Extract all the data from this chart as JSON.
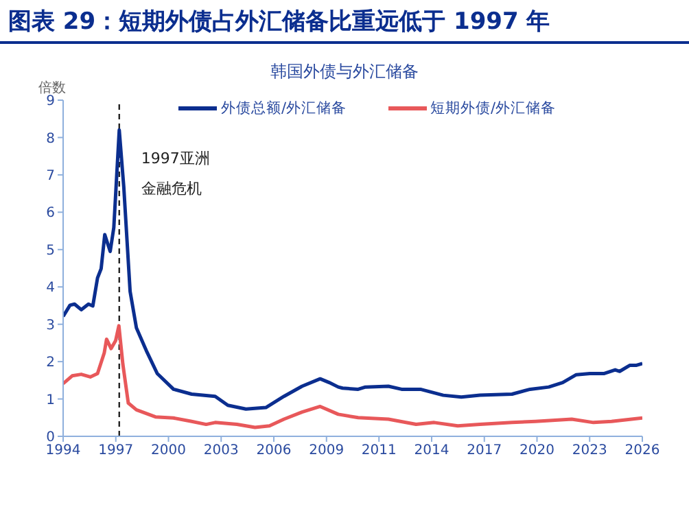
{
  "chart_data": {
    "type": "line",
    "title": "图表 29：短期外债占外汇储备比重远低于 1997 年",
    "subtitle": "韩国外债与外汇储备",
    "ylabel": "倍数",
    "series": [
      {
        "name": "外债总额/外汇储备",
        "color": "#0b2e8f",
        "x": [
          1994.0,
          1994.38,
          1994.63,
          1995.0,
          1995.4,
          1995.64,
          1995.9,
          1996.1,
          1996.3,
          1996.6,
          1996.8,
          1997.1,
          1997.35,
          1997.7,
          1998.05,
          1998.6,
          1999.2,
          2000.1,
          2001.1,
          2002.4,
          2003.1,
          2004.1,
          2005.2,
          2006.2,
          2007.2,
          2008.2,
          2008.7,
          2009.2,
          2009.44,
          2010.3,
          2010.7,
          2011.97,
          2012.7,
          2013.74,
          2015.0,
          2016.0,
          2017.03,
          2018.8,
          2019.8,
          2020.83,
          2021.6,
          2022.35,
          2023.1,
          2023.87,
          2024.5,
          2024.75,
          2025.3,
          2025.65,
          2026.0
        ],
        "values": [
          3.21,
          3.51,
          3.54,
          3.39,
          3.54,
          3.49,
          4.24,
          4.49,
          5.4,
          4.95,
          5.59,
          8.2,
          6.68,
          3.88,
          2.9,
          2.29,
          1.68,
          1.26,
          1.13,
          1.07,
          0.83,
          0.73,
          0.77,
          1.07,
          1.34,
          1.54,
          1.44,
          1.32,
          1.29,
          1.26,
          1.32,
          1.34,
          1.26,
          1.26,
          1.1,
          1.05,
          1.1,
          1.13,
          1.26,
          1.32,
          1.44,
          1.65,
          1.68,
          1.68,
          1.78,
          1.74,
          1.9,
          1.9,
          1.95
        ]
      },
      {
        "name": "短期外债/外汇储备",
        "color": "#e8585a",
        "x": [
          1994.0,
          1994.5,
          1995.0,
          1995.5,
          1995.9,
          1996.27,
          1996.4,
          1996.65,
          1996.9,
          1997.08,
          1997.3,
          1997.6,
          1998.05,
          1999.1,
          2000.1,
          2001.1,
          2001.9,
          2002.4,
          2003.6,
          2004.6,
          2005.4,
          2006.2,
          2007.2,
          2008.2,
          2009.2,
          2010.3,
          2011.97,
          2013.5,
          2014.5,
          2015.8,
          2017.03,
          2018.8,
          2020.1,
          2022.1,
          2023.3,
          2024.3,
          2025.4,
          2026.0
        ],
        "values": [
          1.41,
          1.62,
          1.66,
          1.59,
          1.68,
          2.23,
          2.6,
          2.35,
          2.56,
          2.96,
          1.93,
          0.89,
          0.71,
          0.52,
          0.49,
          0.4,
          0.32,
          0.37,
          0.32,
          0.24,
          0.28,
          0.46,
          0.65,
          0.8,
          0.59,
          0.5,
          0.46,
          0.32,
          0.37,
          0.28,
          0.32,
          0.37,
          0.4,
          0.46,
          0.37,
          0.4,
          0.46,
          0.49
        ]
      }
    ],
    "xlim": [
      1994,
      2026
    ],
    "xticks": [
      1994,
      {
        "value": 1996.91,
        "label": "1997"
      },
      {
        "value": 1999.82,
        "label": "2000"
      },
      {
        "value": 2002.73,
        "label": "2003"
      },
      {
        "value": 2005.64,
        "label": "2006"
      },
      {
        "value": 2008.55,
        "label": "2009"
      },
      {
        "value": 2011.45,
        "label": "2011"
      },
      {
        "value": 2014.36,
        "label": "2014"
      },
      {
        "value": 2017.27,
        "label": "2017"
      },
      {
        "value": 2020.18,
        "label": "2020"
      },
      {
        "value": 2023.09,
        "label": "2023"
      },
      2026
    ],
    "ylim": [
      0,
      9
    ],
    "yticks": [
      0,
      1,
      2,
      3,
      4,
      5,
      6,
      7,
      8,
      9
    ],
    "ref_lines": [
      {
        "axis": "x",
        "value": 1997.1,
        "color": "#222222",
        "line_style": "dashed"
      }
    ],
    "annotations": [
      {
        "text": "1997亚洲金融危机",
        "x": 1997.1,
        "y": 8.2
      }
    ],
    "legend": "top",
    "grid": false,
    "marker": "none",
    "line_style": "solid"
  }
}
